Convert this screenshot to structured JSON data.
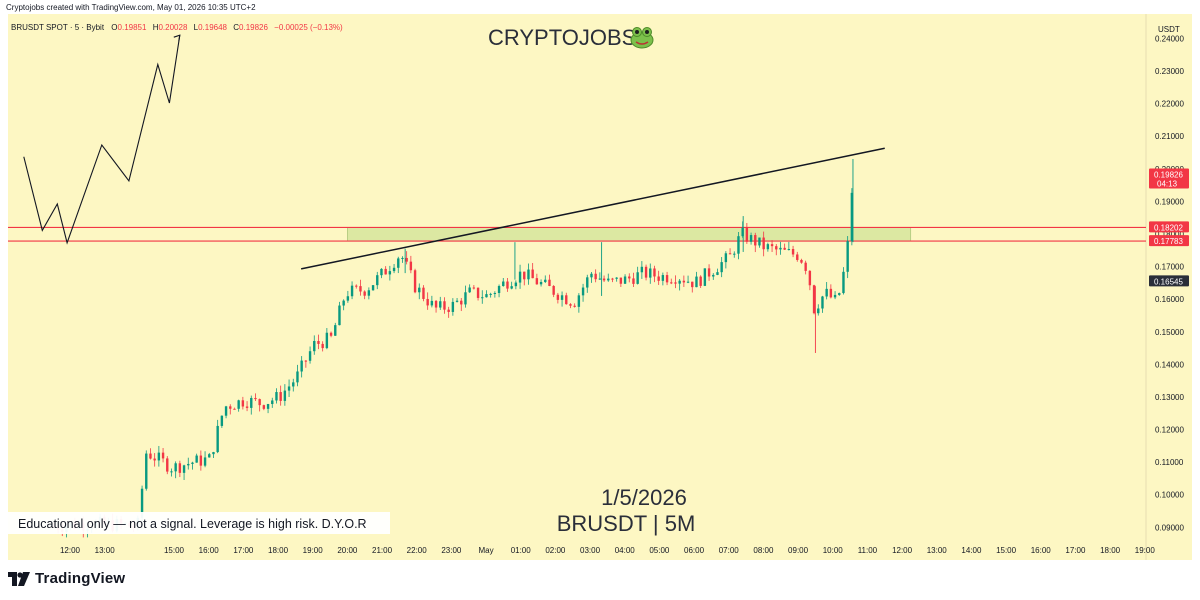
{
  "header": {
    "credit": "Cryptojobs created with TradingView.com, May 01, 2026 10:35 UTC+2"
  },
  "ohlc": {
    "symbol": "BRUSDT SPOT · 5 · Bybit",
    "open_label": "O",
    "open": "0.19851",
    "high_label": "H",
    "high": "0.20028",
    "low_label": "L",
    "low": "0.19648",
    "close_label": "C",
    "close": "0.19826",
    "change": "−0.00025 (−0.13%)"
  },
  "brand": {
    "title": "CRYPTOJOBS",
    "title_icon": "frog-face-icon"
  },
  "overlay": {
    "date": "1/5/2026",
    "pair_timeframe": "BRUSDT | 5M",
    "disclaimer": "Educational only — not a signal. Leverage is high risk. D.Y.O.R"
  },
  "price_axis": {
    "currency": "USDT",
    "labels": [
      "0.24000",
      "0.23000",
      "0.22000",
      "0.21000",
      "0.20000",
      "0.19000",
      "0.18000",
      "0.17000",
      "0.16000",
      "0.15000",
      "0.14000",
      "0.13000",
      "0.12000",
      "0.11000",
      "0.10000",
      "0.09000"
    ],
    "badges": [
      {
        "price": 0.19826,
        "text": "0.19826",
        "sub": "04:13",
        "color": "#f23645"
      },
      {
        "price": 0.18202,
        "text": "0.18202",
        "color": "#f23645"
      },
      {
        "price": 0.17783,
        "text": "0.17783",
        "color": "#f23645"
      },
      {
        "price": 0.16545,
        "text": "0.16545",
        "color": "#2a2e39"
      }
    ]
  },
  "time_axis": {
    "labels": [
      "12:00",
      "13:00",
      "15:00",
      "16:00",
      "17:00",
      "18:00",
      "19:00",
      "20:00",
      "21:00",
      "22:00",
      "23:00",
      "May",
      "01:00",
      "02:00",
      "03:00",
      "04:00",
      "05:00",
      "06:00",
      "07:00",
      "08:00",
      "09:00",
      "10:00",
      "11:00",
      "12:00",
      "13:00",
      "14:00",
      "15:00",
      "16:00",
      "17:00",
      "18:00",
      "19:00"
    ]
  },
  "footer": {
    "logo_icon": "tradingview-logo-icon",
    "logo_text": "TradingView"
  },
  "colors": {
    "background": "#fdf7c3",
    "up": "#089981",
    "down": "#f23645",
    "zone_fill": "#dbe8a1",
    "zone_line": "#f23645"
  },
  "chart_data": {
    "type": "candlestick",
    "interval": "5m",
    "y_range": [
      0.0855,
      0.2475
    ],
    "x_range": [
      "11:30",
      "19:30"
    ],
    "key_levels": [
      0.18202,
      0.17783
    ],
    "zone": {
      "top": 0.18202,
      "bottom": 0.17783,
      "from": "20:00",
      "to": "12:15"
    },
    "trendline": {
      "from": {
        "time": "18:40",
        "price": 0.1693
      },
      "to": {
        "time": "11:30",
        "price": 0.2063
      }
    },
    "projection_path": [
      {
        "time": "10:40",
        "price": 0.2037
      },
      {
        "time": "11:12",
        "price": 0.1811
      },
      {
        "time": "11:38",
        "price": 0.1892
      },
      {
        "time": "11:55",
        "price": 0.1773
      },
      {
        "time": "12:55",
        "price": 0.2073
      },
      {
        "time": "13:42",
        "price": 0.1963
      },
      {
        "time": "14:32",
        "price": 0.232
      },
      {
        "time": "14:52",
        "price": 0.2202
      },
      {
        "time": "15:10",
        "price": 0.241
      }
    ],
    "price_path": [
      {
        "time": "11:30",
        "price": 0.0903
      },
      {
        "time": "12:30",
        "price": 0.0912
      },
      {
        "time": "13:20",
        "price": 0.0908
      },
      {
        "time": "13:55",
        "price": 0.0903
      },
      {
        "time": "14:10",
        "price": 0.113
      },
      {
        "time": "14:30",
        "price": 0.111
      },
      {
        "time": "14:55",
        "price": 0.1083
      },
      {
        "time": "15:30",
        "price": 0.11
      },
      {
        "time": "16:00",
        "price": 0.111
      },
      {
        "time": "16:25",
        "price": 0.127
      },
      {
        "time": "17:00",
        "price": 0.129
      },
      {
        "time": "17:30",
        "price": 0.128
      },
      {
        "time": "18:00",
        "price": 0.13
      },
      {
        "time": "18:30",
        "price": 0.136
      },
      {
        "time": "19:00",
        "price": 0.146
      },
      {
        "time": "19:30",
        "price": 0.148
      },
      {
        "time": "19:55",
        "price": 0.162
      },
      {
        "time": "20:30",
        "price": 0.163
      },
      {
        "time": "21:00",
        "price": 0.168
      },
      {
        "time": "21:30",
        "price": 0.174
      },
      {
        "time": "21:55",
        "price": 0.164
      },
      {
        "time": "22:30",
        "price": 0.157
      },
      {
        "time": "23:00",
        "price": 0.158
      },
      {
        "time": "23:30",
        "price": 0.162
      },
      {
        "time": "00:00",
        "price": 0.161
      },
      {
        "time": "00:30",
        "price": 0.165
      },
      {
        "time": "01:00",
        "price": 0.168
      },
      {
        "time": "01:30",
        "price": 0.165
      },
      {
        "time": "02:00",
        "price": 0.162
      },
      {
        "time": "02:30",
        "price": 0.159
      },
      {
        "time": "03:00",
        "price": 0.168
      },
      {
        "time": "03:30",
        "price": 0.165
      },
      {
        "time": "04:00",
        "price": 0.166
      },
      {
        "time": "04:30",
        "price": 0.168
      },
      {
        "time": "05:00",
        "price": 0.167
      },
      {
        "time": "05:30",
        "price": 0.167
      },
      {
        "time": "06:00",
        "price": 0.165
      },
      {
        "time": "06:30",
        "price": 0.169
      },
      {
        "time": "07:00",
        "price": 0.173
      },
      {
        "time": "07:20",
        "price": 0.18
      },
      {
        "time": "07:40",
        "price": 0.178
      },
      {
        "time": "08:00",
        "price": 0.176
      },
      {
        "time": "08:30",
        "price": 0.1745
      },
      {
        "time": "09:00",
        "price": 0.1735
      },
      {
        "time": "09:15",
        "price": 0.169
      },
      {
        "time": "09:25",
        "price": 0.157
      },
      {
        "time": "09:45",
        "price": 0.162
      },
      {
        "time": "10:05",
        "price": 0.159
      },
      {
        "time": "10:15",
        "price": 0.166
      },
      {
        "time": "10:25",
        "price": 0.178
      },
      {
        "time": "10:30",
        "price": 0.192
      },
      {
        "time": "10:35",
        "price": 0.19826
      }
    ],
    "last_price": 0.19826,
    "countdown": "04:13",
    "last_visible_price_label": 0.16545
  }
}
